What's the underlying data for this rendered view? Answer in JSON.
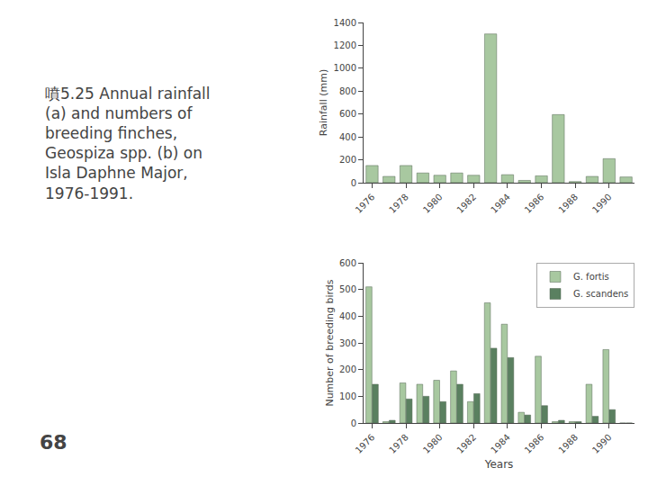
{
  "chart_data": [
    {
      "type": "bar",
      "categories": [
        "1976",
        null,
        "1978",
        null,
        "1980",
        null,
        "1982",
        null,
        "1984",
        null,
        "1986",
        null,
        "1988",
        null,
        "1990",
        null
      ],
      "values": [
        150,
        55,
        150,
        85,
        65,
        85,
        65,
        1300,
        70,
        20,
        60,
        595,
        10,
        55,
        210,
        50
      ],
      "color": "#a8c8a0",
      "ylabel": "Rainfall (mm)",
      "ylim": [
        0,
        1400
      ],
      "yticks": [
        0,
        200,
        400,
        600,
        800,
        1000,
        1200,
        1400
      ],
      "grid": false,
      "annotations": [
        "噴5.25 Annual rainfall\n(a) and numbers of\nbreeding finches,\nGeospiza spp. (b) on\nIsla Daphne Major,\n1976-1991.",
        "68"
      ]
    },
    {
      "type": "bar",
      "categories": [
        "1976",
        null,
        "1978",
        null,
        "1980",
        null,
        "1982",
        null,
        "1984",
        null,
        "1986",
        null,
        "1988",
        null,
        "1990",
        null
      ],
      "series": [
        {
          "name": "G. fortis",
          "color": "#a8c8a0",
          "values": [
            510,
            5,
            150,
            145,
            160,
            195,
            80,
            450,
            370,
            40,
            250,
            5,
            5,
            145,
            275,
            0
          ]
        },
        {
          "name": "G. scandens",
          "color": "#5a8060",
          "values": [
            145,
            10,
            90,
            100,
            80,
            145,
            110,
            280,
            245,
            30,
            65,
            10,
            5,
            25,
            50,
            0
          ]
        }
      ],
      "xlabel": "Years",
      "ylabel": "Number of breeding birds",
      "ylim": [
        0,
        600
      ],
      "yticks": [
        0,
        100,
        200,
        300,
        400,
        500,
        600
      ],
      "grid": false,
      "legend": "upper right"
    }
  ]
}
